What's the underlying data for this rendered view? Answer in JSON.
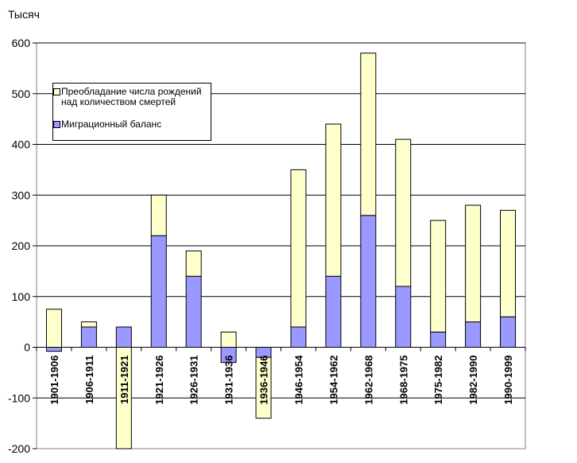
{
  "chart_data": {
    "type": "bar",
    "stacked": true,
    "unit_label": "Тысяч",
    "categories": [
      "1901-1906",
      "1906-1911",
      "1911-1921",
      "1921-1926",
      "1926-1931",
      "1931-1936",
      "1936-1946",
      "1946-1954",
      "1954-1962",
      "1962-1968",
      "1968-1975",
      "1975-1982",
      "1982-1990",
      "1990-1999"
    ],
    "series": [
      {
        "name": "Миграционный баланс",
        "color": "#9999ff",
        "values": [
          -8,
          40,
          40,
          220,
          140,
          -30,
          -20,
          40,
          140,
          260,
          120,
          30,
          50,
          60
        ]
      },
      {
        "name": "Преобладание числа рождений над количеством смертей",
        "color": "#ffffcc",
        "values": [
          75,
          10,
          -200,
          80,
          50,
          30,
          -120,
          310,
          300,
          320,
          290,
          220,
          230,
          210
        ]
      }
    ],
    "ylim": [
      -200,
      600
    ],
    "yticks": [
      "600",
      "500",
      "400",
      "300",
      "200",
      "100",
      "0",
      "-100",
      "-200"
    ],
    "grid": true,
    "legend_position": "top-left"
  }
}
